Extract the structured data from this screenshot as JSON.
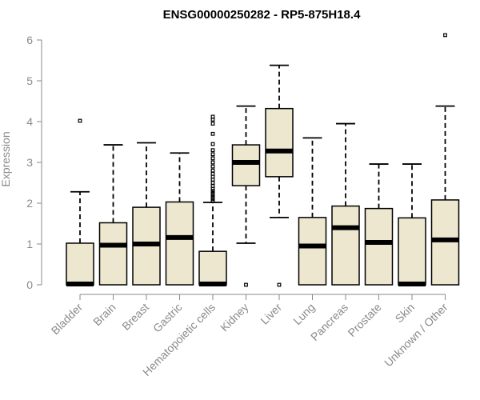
{
  "chart_data": {
    "type": "boxplot",
    "title": "ENSG00000250282 - RP5-875H18.4",
    "xlabel": "",
    "ylabel": "Expression",
    "ylim": [
      0,
      6
    ],
    "yticks": [
      0,
      1,
      2,
      3,
      4,
      5,
      6
    ],
    "grid": false,
    "box_color": "#ede7cf",
    "categories": [
      "Bladder",
      "Brain",
      "Breast",
      "Gastric",
      "Hematopoietic cells",
      "Kidney",
      "Liver",
      "Lung",
      "Pancreas",
      "Prostate",
      "Skin",
      "Unknown / Other"
    ],
    "boxes": [
      {
        "min": 0,
        "q1": 0,
        "median": 0.02,
        "q3": 1.02,
        "max": 2.28,
        "outliers": [
          4.02
        ]
      },
      {
        "min": 0,
        "q1": 0,
        "median": 0.97,
        "q3": 1.52,
        "max": 3.43,
        "outliers": []
      },
      {
        "min": 0,
        "q1": 0,
        "median": 1.0,
        "q3": 1.9,
        "max": 3.48,
        "outliers": []
      },
      {
        "min": 0,
        "q1": 0,
        "median": 1.16,
        "q3": 2.03,
        "max": 3.23,
        "outliers": []
      },
      {
        "min": 0,
        "q1": 0,
        "median": 0.02,
        "q3": 0.82,
        "max": 2.02,
        "outliers": [
          2.05,
          2.1,
          2.15,
          2.2,
          2.25,
          2.3,
          2.35,
          2.42,
          2.5,
          2.58,
          2.65,
          2.72,
          2.8,
          2.9,
          3.0,
          3.1,
          3.2,
          3.3,
          3.45,
          3.7,
          3.95,
          4.05,
          4.12
        ]
      },
      {
        "min": 1.02,
        "q1": 2.43,
        "median": 3.0,
        "q3": 3.43,
        "max": 4.38,
        "outliers": [
          0.0
        ]
      },
      {
        "min": 1.65,
        "q1": 2.65,
        "median": 3.28,
        "q3": 4.32,
        "max": 5.38,
        "outliers": [
          0.0
        ]
      },
      {
        "min": 0,
        "q1": 0,
        "median": 0.95,
        "q3": 1.65,
        "max": 3.6,
        "outliers": []
      },
      {
        "min": 0,
        "q1": 0,
        "median": 1.4,
        "q3": 1.93,
        "max": 3.95,
        "outliers": []
      },
      {
        "min": 0,
        "q1": 0,
        "median": 1.04,
        "q3": 1.87,
        "max": 2.96,
        "outliers": []
      },
      {
        "min": 0,
        "q1": 0,
        "median": 0.02,
        "q3": 1.64,
        "max": 2.96,
        "outliers": []
      },
      {
        "min": 0,
        "q1": 0,
        "median": 1.1,
        "q3": 2.08,
        "max": 4.38,
        "outliers": [
          6.12
        ]
      }
    ]
  }
}
